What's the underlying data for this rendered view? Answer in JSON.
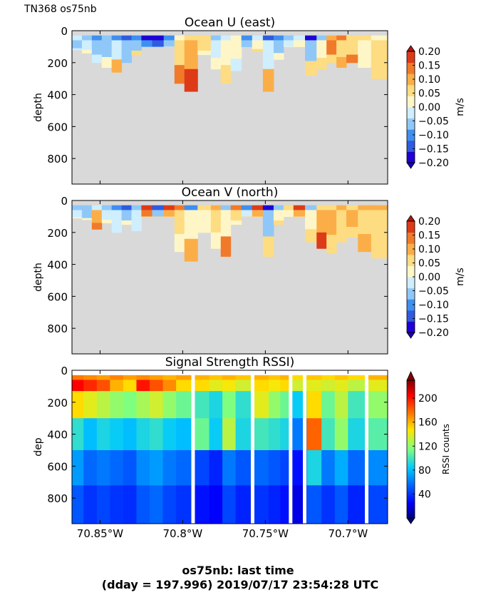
{
  "header_label": "TN368 os75nb",
  "footer": {
    "line1": "os75nb: last time",
    "line2": "(dday = 197.996) 2019/07/17 23:54:28 UTC"
  },
  "chart_data": [
    {
      "type": "heatmap",
      "title": "Ocean U (east)",
      "ylabel": "depth",
      "ylim": [
        960,
        0
      ],
      "yticks": [
        0,
        200,
        400,
        600,
        800
      ],
      "xlim": [
        -70.867,
        -70.676
      ],
      "xticks": [
        -70.85,
        -70.8,
        -70.75,
        -70.7
      ],
      "xtick_labels_shown": false,
      "colorbar": {
        "label": "m/s",
        "ticks": [
          0.2,
          0.15,
          0.1,
          0.05,
          0.0,
          -0.05,
          -0.1,
          -0.15,
          -0.2
        ],
        "tick_labels": [
          "0.20",
          "0.15",
          "0.10",
          "0.05",
          "0.00",
          "−0.05",
          "−0.10",
          "−0.15",
          "−0.20"
        ],
        "levels": [
          "#1f00d6",
          "#2f5be0",
          "#3f8ff0",
          "#8fc8f8",
          "#cfeefe",
          "#fff6c8",
          "#fddc82",
          "#fbae48",
          "#f07a2a",
          "#dd3a18"
        ]
      },
      "no_data_color": "#d9d9d9",
      "profiles": [
        {
          "lon": -70.864,
          "max_depth": 120,
          "v": [
            -0.03,
            -0.05,
            -0.02
          ]
        },
        {
          "lon": -70.858,
          "max_depth": 140,
          "v": [
            -0.08,
            -0.04,
            0.0
          ]
        },
        {
          "lon": -70.852,
          "max_depth": 200,
          "v": [
            -0.1,
            -0.06,
            -0.03
          ]
        },
        {
          "lon": -70.846,
          "max_depth": 230,
          "v": [
            -0.07,
            -0.05,
            0.02
          ]
        },
        {
          "lon": -70.84,
          "max_depth": 260,
          "v": [
            -0.12,
            -0.02,
            0.08
          ]
        },
        {
          "lon": -70.834,
          "max_depth": 200,
          "v": [
            -0.16,
            -0.08,
            -0.05
          ]
        },
        {
          "lon": -70.828,
          "max_depth": 150,
          "v": [
            -0.12,
            -0.06,
            0.05
          ]
        },
        {
          "lon": -70.822,
          "max_depth": 100,
          "v": [
            -0.18,
            -0.1,
            -0.05
          ]
        },
        {
          "lon": -70.815,
          "max_depth": 100,
          "v": [
            -0.2,
            -0.15,
            -0.08
          ]
        },
        {
          "lon": -70.808,
          "max_depth": 100,
          "v": [
            -0.12,
            -0.05,
            0.0
          ]
        },
        {
          "lon": -70.802,
          "max_depth": 330,
          "v": [
            0.03,
            0.06,
            0.12
          ]
        },
        {
          "lon": -70.796,
          "max_depth": 380,
          "v": [
            0.04,
            0.08,
            0.16
          ]
        },
        {
          "lon": -70.786,
          "max_depth": 150,
          "v": [
            0.06,
            0.04,
            0.0
          ]
        },
        {
          "lon": -70.78,
          "max_depth": 240,
          "v": [
            -0.06,
            -0.02,
            0.0
          ]
        },
        {
          "lon": -70.774,
          "max_depth": 330,
          "v": [
            -0.04,
            0.02,
            0.06
          ]
        },
        {
          "lon": -70.768,
          "max_depth": 250,
          "v": [
            0.03,
            0.0,
            -0.03
          ]
        },
        {
          "lon": -70.761,
          "max_depth": 100,
          "v": [
            -0.12,
            -0.08,
            -0.05
          ]
        },
        {
          "lon": -70.755,
          "max_depth": 130,
          "v": [
            -0.04,
            0.02,
            0.05
          ]
        },
        {
          "lon": -70.748,
          "max_depth": 380,
          "v": [
            -0.16,
            -0.04,
            0.08
          ]
        },
        {
          "lon": -70.742,
          "max_depth": 180,
          "v": [
            -0.1,
            -0.05,
            0.0
          ]
        },
        {
          "lon": -70.736,
          "max_depth": 100,
          "v": [
            -0.06,
            -0.03,
            0.0
          ]
        },
        {
          "lon": -70.73,
          "max_depth": 100,
          "v": [
            -0.02,
            0.0,
            0.02
          ]
        },
        {
          "lon": -70.722,
          "max_depth": 280,
          "v": [
            -0.2,
            -0.08,
            0.04
          ]
        },
        {
          "lon": -70.716,
          "max_depth": 240,
          "v": [
            -0.06,
            0.02,
            0.05
          ]
        },
        {
          "lon": -70.71,
          "max_depth": 200,
          "v": [
            0.08,
            0.12,
            0.06
          ]
        },
        {
          "lon": -70.704,
          "max_depth": 230,
          "v": [
            0.12,
            0.06,
            0.08
          ]
        },
        {
          "lon": -70.698,
          "max_depth": 200,
          "v": [
            0.05,
            0.07,
            0.12
          ]
        },
        {
          "lon": -70.69,
          "max_depth": 230,
          "v": [
            0.04,
            0.02,
            0.0
          ]
        },
        {
          "lon": -70.682,
          "max_depth": 300,
          "v": [
            0.02,
            0.06,
            0.04
          ]
        }
      ]
    },
    {
      "type": "heatmap",
      "title": "Ocean V (north)",
      "ylabel": "depth",
      "ylim": [
        960,
        0
      ],
      "yticks": [
        0,
        200,
        400,
        600,
        800
      ],
      "xlim": [
        -70.867,
        -70.676
      ],
      "xticks": [
        -70.85,
        -70.8,
        -70.75,
        -70.7
      ],
      "xtick_labels_shown": false,
      "colorbar": {
        "label": "m/s",
        "ticks": [
          0.2,
          0.15,
          0.1,
          0.05,
          0.0,
          -0.05,
          -0.1,
          -0.15,
          -0.2
        ],
        "tick_labels": [
          "0.20",
          "0.15",
          "0.10",
          "0.05",
          "0.00",
          "−0.05",
          "−0.10",
          "−0.15",
          "−0.20"
        ],
        "levels": [
          "#1f00d6",
          "#2f5be0",
          "#3f8ff0",
          "#8fc8f8",
          "#cfeefe",
          "#fff6c8",
          "#fddc82",
          "#fbae48",
          "#f07a2a",
          "#dd3a18"
        ]
      },
      "no_data_color": "#d9d9d9",
      "profiles": [
        {
          "lon": -70.864,
          "max_depth": 110,
          "v": [
            -0.06,
            -0.03,
            0.0
          ]
        },
        {
          "lon": -70.858,
          "max_depth": 120,
          "v": [
            -0.08,
            -0.05,
            0.02
          ]
        },
        {
          "lon": -70.852,
          "max_depth": 180,
          "v": [
            -0.04,
            0.08,
            0.14
          ]
        },
        {
          "lon": -70.846,
          "max_depth": 140,
          "v": [
            -0.06,
            -0.03,
            0.02
          ]
        },
        {
          "lon": -70.84,
          "max_depth": 200,
          "v": [
            -0.1,
            -0.04,
            -0.02
          ]
        },
        {
          "lon": -70.834,
          "max_depth": 150,
          "v": [
            -0.14,
            -0.06,
            0.0
          ]
        },
        {
          "lon": -70.828,
          "max_depth": 190,
          "v": [
            -0.08,
            -0.04,
            -0.02
          ]
        },
        {
          "lon": -70.822,
          "max_depth": 100,
          "v": [
            0.18,
            0.12,
            0.06
          ]
        },
        {
          "lon": -70.815,
          "max_depth": 100,
          "v": [
            -0.14,
            -0.05,
            0.05
          ]
        },
        {
          "lon": -70.808,
          "max_depth": 100,
          "v": [
            0.16,
            0.1,
            0.04
          ]
        },
        {
          "lon": -70.802,
          "max_depth": 320,
          "v": [
            0.14,
            0.06,
            0.02
          ]
        },
        {
          "lon": -70.796,
          "max_depth": 380,
          "v": [
            -0.1,
            0.02,
            0.1
          ]
        },
        {
          "lon": -70.786,
          "max_depth": 200,
          "v": [
            0.06,
            0.03,
            0.0
          ]
        },
        {
          "lon": -70.78,
          "max_depth": 300,
          "v": [
            0.1,
            0.04,
            0.02
          ]
        },
        {
          "lon": -70.774,
          "max_depth": 350,
          "v": [
            -0.06,
            0.03,
            0.12
          ]
        },
        {
          "lon": -70.768,
          "max_depth": 150,
          "v": [
            0.12,
            0.05,
            0.0
          ]
        },
        {
          "lon": -70.761,
          "max_depth": 100,
          "v": [
            -0.1,
            -0.02,
            0.04
          ]
        },
        {
          "lon": -70.755,
          "max_depth": 100,
          "v": [
            0.18,
            0.1,
            0.04
          ]
        },
        {
          "lon": -70.748,
          "max_depth": 350,
          "v": [
            -0.18,
            -0.06,
            0.04
          ]
        },
        {
          "lon": -70.742,
          "max_depth": 150,
          "v": [
            -0.08,
            0.02,
            0.04
          ]
        },
        {
          "lon": -70.736,
          "max_depth": 100,
          "v": [
            0.06,
            0.02,
            0.0
          ]
        },
        {
          "lon": -70.73,
          "max_depth": 100,
          "v": [
            0.18,
            0.1,
            0.04
          ]
        },
        {
          "lon": -70.722,
          "max_depth": 260,
          "v": [
            -0.08,
            0.0,
            0.04
          ]
        },
        {
          "lon": -70.716,
          "max_depth": 300,
          "v": [
            0.04,
            0.08,
            0.16
          ]
        },
        {
          "lon": -70.71,
          "max_depth": 330,
          "v": [
            0.06,
            0.1,
            0.07
          ]
        },
        {
          "lon": -70.704,
          "max_depth": 260,
          "v": [
            0.08,
            0.06,
            0.05
          ]
        },
        {
          "lon": -70.698,
          "max_depth": 230,
          "v": [
            0.06,
            0.09,
            0.04
          ]
        },
        {
          "lon": -70.69,
          "max_depth": 320,
          "v": [
            0.1,
            0.06,
            0.08
          ]
        },
        {
          "lon": -70.682,
          "max_depth": 360,
          "v": [
            0.08,
            0.04,
            0.06
          ]
        }
      ]
    },
    {
      "type": "heatmap",
      "title": "Signal Strength RSSI)",
      "ylabel": "dep",
      "ylim": [
        960,
        0
      ],
      "yticks": [
        0,
        200,
        400,
        600,
        800
      ],
      "xlim": [
        -70.867,
        -70.676
      ],
      "xticks": [
        -70.85,
        -70.8,
        -70.75,
        -70.7
      ],
      "xtick_labels": [
        "70.85°W",
        "70.8°W",
        "70.75°W",
        "70.7°W"
      ],
      "colorbar": {
        "label": "RSSI counts",
        "range": [
          0,
          230
        ],
        "ticks": [
          200,
          160,
          120,
          80,
          40
        ],
        "tick_labels": [
          "200",
          "160",
          "120",
          "80",
          "40"
        ]
      },
      "gaps_lon": [
        -70.7935,
        -70.7575,
        -70.7345,
        -70.726,
        -70.6885
      ],
      "profiles": [
        {
          "lon": -70.864,
          "v": [
            175,
            205,
            150,
            95,
            70,
            50
          ]
        },
        {
          "lon": -70.856,
          "v": [
            170,
            195,
            140,
            80,
            55,
            40
          ]
        },
        {
          "lon": -70.848,
          "v": [
            165,
            185,
            130,
            90,
            60,
            45
          ]
        },
        {
          "lon": -70.84,
          "v": [
            172,
            160,
            120,
            85,
            55,
            40
          ]
        },
        {
          "lon": -70.832,
          "v": [
            165,
            150,
            115,
            80,
            50,
            38
          ]
        },
        {
          "lon": -70.824,
          "v": [
            170,
            200,
            125,
            90,
            65,
            50
          ]
        },
        {
          "lon": -70.816,
          "v": [
            165,
            185,
            135,
            95,
            70,
            55
          ]
        },
        {
          "lon": -70.808,
          "v": [
            160,
            170,
            120,
            85,
            60,
            45
          ]
        },
        {
          "lon": -70.8,
          "v": [
            165,
            150,
            110,
            80,
            55,
            40
          ]
        },
        {
          "lon": -70.788,
          "v": [
            160,
            150,
            100,
            110,
            45,
            30
          ]
        },
        {
          "lon": -70.78,
          "v": [
            155,
            140,
            90,
            85,
            35,
            25
          ]
        },
        {
          "lon": -70.772,
          "v": [
            160,
            145,
            115,
            130,
            60,
            45
          ]
        },
        {
          "lon": -70.764,
          "v": [
            155,
            135,
            95,
            90,
            50,
            35
          ]
        },
        {
          "lon": -70.752,
          "v": [
            160,
            150,
            140,
            100,
            55,
            40
          ]
        },
        {
          "lon": -70.744,
          "v": [
            155,
            145,
            120,
            95,
            50,
            35
          ]
        },
        {
          "lon": -70.738,
          "v": [
            160,
            150,
            110,
            90,
            45,
            30
          ]
        },
        {
          "lon": -70.73,
          "v": [
            150,
            135,
            85,
            60,
            30,
            20
          ]
        },
        {
          "lon": -70.72,
          "v": [
            155,
            140,
            150,
            180,
            90,
            50
          ]
        },
        {
          "lon": -70.712,
          "v": [
            150,
            135,
            110,
            100,
            60,
            40
          ]
        },
        {
          "lon": -70.704,
          "v": [
            155,
            140,
            130,
            120,
            75,
            50
          ]
        },
        {
          "lon": -70.696,
          "v": [
            150,
            130,
            100,
            90,
            55,
            35
          ]
        },
        {
          "lon": -70.682,
          "v": [
            160,
            140,
            120,
            105,
            65,
            45
          ]
        }
      ]
    }
  ]
}
